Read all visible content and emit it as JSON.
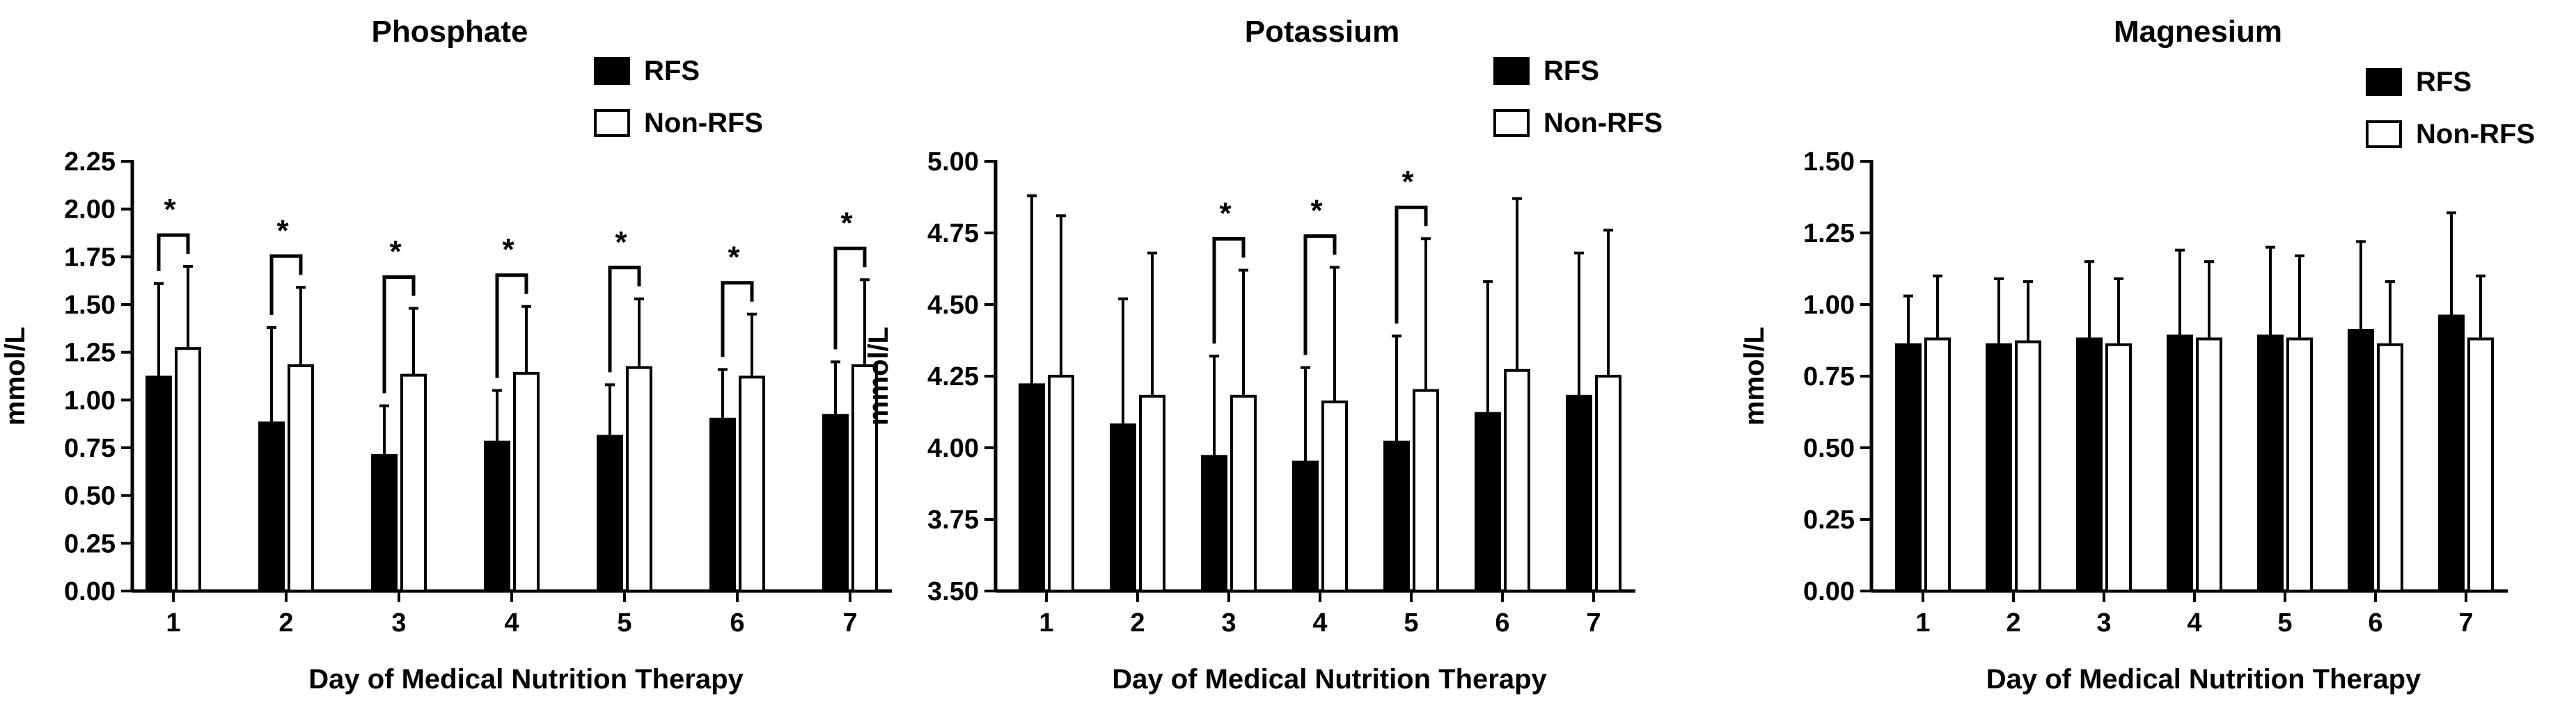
{
  "chart_data": [
    {
      "type": "bar",
      "title": "Phosphate",
      "xlabel": "Day of Medical Nutrition Therapy",
      "ylabel": "mmol/L",
      "ylim": [
        0,
        2.25
      ],
      "yticks": [
        "0.00",
        "0.25",
        "0.50",
        "0.75",
        "1.00",
        "1.25",
        "1.50",
        "1.75",
        "2.00",
        "2.25"
      ],
      "categories": [
        "1",
        "2",
        "3",
        "4",
        "5",
        "6",
        "7"
      ],
      "series": [
        {
          "name": "RFS",
          "fill": "#000000",
          "values": [
            1.12,
            0.88,
            0.71,
            0.78,
            0.81,
            0.9,
            0.92
          ],
          "error": [
            0.49,
            0.5,
            0.26,
            0.27,
            0.27,
            0.26,
            0.28
          ]
        },
        {
          "name": "Non-RFS",
          "fill": "#ffffff",
          "values": [
            1.27,
            1.18,
            1.13,
            1.14,
            1.17,
            1.12,
            1.18
          ],
          "error": [
            0.43,
            0.41,
            0.35,
            0.35,
            0.36,
            0.33,
            0.45
          ]
        }
      ],
      "significance": [
        {
          "category": "1",
          "label": "*"
        },
        {
          "category": "2",
          "label": "*"
        },
        {
          "category": "3",
          "label": "*"
        },
        {
          "category": "4",
          "label": "*"
        },
        {
          "category": "5",
          "label": "*"
        },
        {
          "category": "6",
          "label": "*"
        },
        {
          "category": "7",
          "label": "*"
        }
      ]
    },
    {
      "type": "bar",
      "title": "Potassium",
      "xlabel": "Day of Medical Nutrition Therapy",
      "ylabel": "mmol/L",
      "ylim": [
        3.5,
        5.0
      ],
      "yticks": [
        "3.50",
        "3.75",
        "4.00",
        "4.25",
        "4.50",
        "4.75",
        "5.00"
      ],
      "categories": [
        "1",
        "2",
        "3",
        "4",
        "5",
        "6",
        "7"
      ],
      "series": [
        {
          "name": "RFS",
          "fill": "#000000",
          "values": [
            4.22,
            4.08,
            3.97,
            3.95,
            4.02,
            4.12,
            4.18
          ],
          "error": [
            0.66,
            0.44,
            0.35,
            0.33,
            0.37,
            0.46,
            0.5
          ]
        },
        {
          "name": "Non-RFS",
          "fill": "#ffffff",
          "values": [
            4.25,
            4.18,
            4.18,
            4.16,
            4.2,
            4.27,
            4.25
          ],
          "error": [
            0.56,
            0.5,
            0.44,
            0.47,
            0.53,
            0.6,
            0.51
          ]
        }
      ],
      "significance": [
        {
          "category": "3",
          "label": "*"
        },
        {
          "category": "4",
          "label": "*"
        },
        {
          "category": "5",
          "label": "*"
        }
      ]
    },
    {
      "type": "bar",
      "title": "Magnesium",
      "xlabel": "Day of Medical Nutrition Therapy",
      "ylabel": "mmol/L",
      "ylim": [
        0,
        1.5
      ],
      "yticks": [
        "0.00",
        "0.25",
        "0.50",
        "0.75",
        "1.00",
        "1.25",
        "1.50"
      ],
      "categories": [
        "1",
        "2",
        "3",
        "4",
        "5",
        "6",
        "7"
      ],
      "series": [
        {
          "name": "RFS",
          "fill": "#000000",
          "values": [
            0.86,
            0.86,
            0.88,
            0.89,
            0.89,
            0.91,
            0.96
          ],
          "error": [
            0.17,
            0.23,
            0.27,
            0.3,
            0.31,
            0.31,
            0.36
          ]
        },
        {
          "name": "Non-RFS",
          "fill": "#ffffff",
          "values": [
            0.88,
            0.87,
            0.86,
            0.88,
            0.88,
            0.86,
            0.88
          ],
          "error": [
            0.22,
            0.21,
            0.23,
            0.27,
            0.29,
            0.22,
            0.22
          ]
        }
      ],
      "significance": []
    }
  ]
}
